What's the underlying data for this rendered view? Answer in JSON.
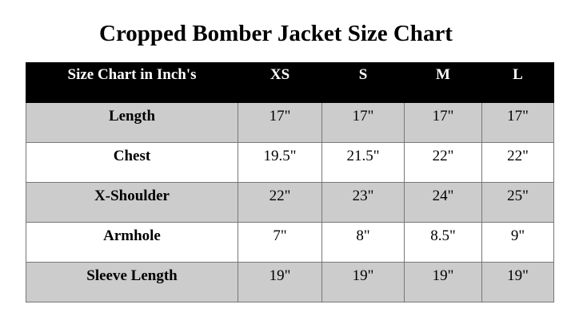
{
  "title": "Cropped Bomber Jacket Size Chart",
  "table": {
    "header": [
      "Size Chart in Inch's",
      "XS",
      "S",
      "M",
      "L"
    ],
    "rows": [
      [
        "Length",
        "17\"",
        "17\"",
        "17\"",
        "17\""
      ],
      [
        "Chest",
        "19.5\"",
        "21.5\"",
        "22\"",
        "22\""
      ],
      [
        "X-Shoulder",
        "22\"",
        "23\"",
        "24\"",
        "25\""
      ],
      [
        "Armhole",
        "7\"",
        "8\"",
        "8.5\"",
        "9\""
      ],
      [
        "Sleeve Length",
        "19\"",
        "19\"",
        "19\"",
        "19\""
      ]
    ],
    "header_bg": "#000000",
    "alt_row_bg": "#cccccc"
  }
}
